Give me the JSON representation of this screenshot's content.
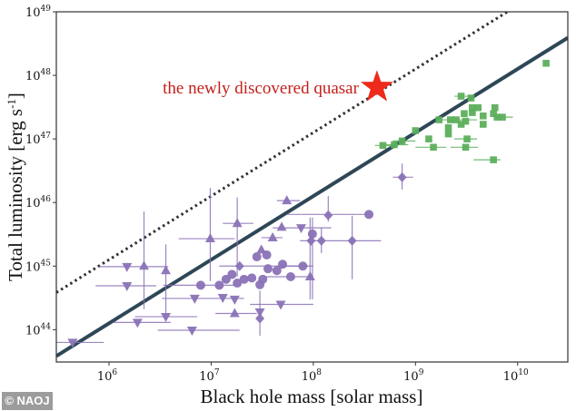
{
  "chart_data": {
    "type": "scatter",
    "title": "",
    "xlabel": "Black hole mass [solar mass]",
    "ylabel": "Total luminosity [erg s-1]",
    "ylabel_main": "Total luminosity [erg s",
    "ylabel_sup": "-1",
    "ylabel_end": "]",
    "x_scale": "log",
    "y_scale": "log",
    "xlim": [
      305000.0,
      31000000000.0
    ],
    "ylim": [
      3.1e+43,
      1e+49
    ],
    "grid": false,
    "x_ticks": [
      {
        "value": 1000000.0,
        "base": "10",
        "exp": "6"
      },
      {
        "value": 10000000.0,
        "base": "10",
        "exp": "7"
      },
      {
        "value": 100000000.0,
        "base": "10",
        "exp": "8"
      },
      {
        "value": 1000000000.0,
        "base": "10",
        "exp": "9"
      },
      {
        "value": 10000000000.0,
        "base": "10",
        "exp": "10"
      }
    ],
    "y_ticks": [
      {
        "value": 1e+44,
        "base": "10",
        "exp": "44"
      },
      {
        "value": 1e+45,
        "base": "10",
        "exp": "45"
      },
      {
        "value": 1e+46,
        "base": "10",
        "exp": "46"
      },
      {
        "value": 1e+47,
        "base": "10",
        "exp": "47"
      },
      {
        "value": 1e+48,
        "base": "10",
        "exp": "48"
      },
      {
        "value": 1e+49,
        "base": "10",
        "exp": "49"
      }
    ],
    "colors": {
      "purple": "#8a72b6",
      "green": "#5caf5c",
      "solid_line": "#2e4757",
      "dotted_line": "#333333",
      "star": "#ee2a1b",
      "annotation": "#c2201b"
    },
    "lines": [
      {
        "style": "solid",
        "relation": "L = 1.26e38 x M",
        "coefficient": 1.26e+38
      },
      {
        "style": "dotted",
        "relation": "L = 1.26e39 x M",
        "coefficient": 1.26e+39
      }
    ],
    "highlight": {
      "m": 420000000.0,
      "l": 6.5e+47,
      "marker": "star",
      "label": "the newly discovered quasar"
    },
    "series": [
      {
        "color": "purple",
        "points": [
          {
            "m": 440000.0,
            "l": 6.3e+43,
            "marker": "down",
            "xerr": [
              300000.0,
              890000.0
            ]
          },
          {
            "m": 1500000.0,
            "l": 9.8e+44,
            "marker": "down",
            "xerr": [
              810000.0,
              3800000.0
            ]
          },
          {
            "m": 1500000.0,
            "l": 4.9e+44,
            "marker": "down",
            "xerr": [
              740000.0,
              2900000.0
            ]
          },
          {
            "m": 2200000.0,
            "l": 1e+45,
            "marker": "up",
            "yerr": [
              2.1e+44,
              7.2e+45
            ]
          },
          {
            "m": 3600000.0,
            "l": 8.5e+44,
            "marker": "up",
            "yerr": [
              1.5e+44,
              2.2e+45
            ]
          },
          {
            "m": 3600000.0,
            "l": 1.6e+44,
            "marker": "down",
            "xerr": [
              1800000.0,
              7300000.0
            ]
          },
          {
            "m": 1900000.0,
            "l": 1.3e+44,
            "marker": "down",
            "xerr": [
              1100000.0,
              4000000.0
            ]
          },
          {
            "m": 6500000.0,
            "l": 9.8e+43,
            "marker": "down",
            "xerr": [
              3000000.0,
              19000000.0
            ]
          },
          {
            "m": 6900000.0,
            "l": 3.1e+44,
            "marker": "down",
            "xerr": [
              3300000.0,
              21000000.0
            ]
          },
          {
            "m": 9800000.0,
            "l": 2.7e+45,
            "marker": "up",
            "xerr": [
              4800000.0,
              17000000.0
            ],
            "yerr": [
              5.8e+44,
              1.7e+46
            ]
          },
          {
            "m": 7900000.0,
            "l": 5e+44,
            "marker": "circle",
            "xerr": [
              3400000.0,
              17000000.0
            ]
          },
          {
            "m": 18000000.0,
            "l": 4.7e+45,
            "marker": "up",
            "xerr": [
              13000000.0,
              26000000.0
            ],
            "yerr": [
              6.8e+44,
              1.2e+46
            ]
          },
          {
            "m": 55000000.0,
            "l": 1.07e+46,
            "marker": "up",
            "xerr": [
              44000000.0,
              74000000.0
            ]
          },
          {
            "m": 140000000.0,
            "l": 6.3e+45,
            "marker": "diamond",
            "yerr": [
              5e+45,
              1.26e+46
            ]
          },
          {
            "m": 350000000.0,
            "l": 6.5e+45,
            "marker": "circle",
            "xerr": [
              55000000.0,
              350000000.0
            ]
          },
          {
            "m": 76000000.0,
            "l": 4e+45,
            "marker": "down",
            "xerr": [
              40000000.0,
              150000000.0
            ]
          },
          {
            "m": 49000000.0,
            "l": 4.1e+45,
            "marker": "up"
          },
          {
            "m": 40000000.0,
            "l": 2.8e+45,
            "marker": "up",
            "xerr": [
              31000000.0,
              50000000.0
            ]
          },
          {
            "m": 98000000.0,
            "l": 3.2e+45,
            "marker": "circle",
            "yerr": [
              3e+44,
              5.8e+45
            ]
          },
          {
            "m": 95000000.0,
            "l": 2.5e+45,
            "marker": "diamond"
          },
          {
            "m": 240000000.0,
            "l": 2.5e+45,
            "marker": "diamond",
            "xerr": [
              74000000.0,
              460000000.0
            ],
            "yerr": [
              6.2e+44,
              6.2e+45
            ]
          },
          {
            "m": 120000000.0,
            "l": 2.5e+45,
            "marker": "diamond",
            "yerr": [
              1.6e+45,
              4e+45
            ]
          },
          {
            "m": 31000000.0,
            "l": 1.8e+45,
            "marker": "up"
          },
          {
            "m": 28000000.0,
            "l": 1.4e+45,
            "marker": "circle"
          },
          {
            "m": 35000000.0,
            "l": 1.5e+45,
            "marker": "circle"
          },
          {
            "m": 19000000.0,
            "l": 1e+45,
            "marker": "diamond",
            "xerr": [
              12000000.0,
              89000000.0
            ]
          },
          {
            "m": 50000000.0,
            "l": 1.07e+45,
            "marker": "circle"
          },
          {
            "m": 79000000.0,
            "l": 1e+45,
            "marker": "circle",
            "xerr": [
              44000000.0,
              100000000.0
            ]
          },
          {
            "m": 36000000.0,
            "l": 9.1e+44,
            "marker": "circle"
          },
          {
            "m": 44000000.0,
            "l": 8.5e+44,
            "marker": "circle"
          },
          {
            "m": 16000000.0,
            "l": 7.4e+44,
            "marker": "circle"
          },
          {
            "m": 14000000.0,
            "l": 6.2e+44,
            "marker": "circle"
          },
          {
            "m": 12000000.0,
            "l": 5e+44,
            "marker": "circle"
          },
          {
            "m": 21000000.0,
            "l": 6.2e+44,
            "marker": "circle"
          },
          {
            "m": 18000000.0,
            "l": 5.4e+44,
            "marker": "circle"
          },
          {
            "m": 25000000.0,
            "l": 6.5e+44,
            "marker": "circle"
          },
          {
            "m": 32000000.0,
            "l": 6.2e+44,
            "marker": "circle"
          },
          {
            "m": 30000000.0,
            "l": 5.1e+44,
            "marker": "circle"
          },
          {
            "m": 60000000.0,
            "l": 6.8e+44,
            "marker": "circle",
            "xerr": [
              33000000.0,
              100000000.0
            ]
          },
          {
            "m": 93000000.0,
            "l": 6.8e+44,
            "marker": "up",
            "yerr": [
              3e+44,
              5.8e+45
            ]
          },
          {
            "m": 17000000.0,
            "l": 3e+44,
            "marker": "down"
          },
          {
            "m": 13000000.0,
            "l": 3.2e+44,
            "marker": "down"
          },
          {
            "m": 48000000.0,
            "l": 2.5e+44,
            "marker": "down",
            "xerr": [
              24000000.0,
              100000000.0
            ]
          },
          {
            "m": 30000000.0,
            "l": 1.9e+44,
            "marker": "down"
          },
          {
            "m": 17000000.0,
            "l": 1.8e+44,
            "marker": "up",
            "xerr": [
              11000000.0,
              28000000.0
            ]
          },
          {
            "m": 30000000.0,
            "l": 1.5e+44,
            "marker": "diamond",
            "yerr": [
              8e+43,
              4.1e+44
            ]
          },
          {
            "m": 740000000.0,
            "l": 2.5e+46,
            "marker": "diamond",
            "xerr": [
              600000000.0,
              950000000.0
            ],
            "yerr": [
              1.6e+46,
              4.1e+46
            ]
          }
        ]
      },
      {
        "color": "green",
        "points": [
          {
            "m": 19000000000.0,
            "l": 1.55e+48,
            "marker": "square"
          },
          {
            "m": 2800000000.0,
            "l": 4.7e+47,
            "marker": "square",
            "xerr": [
              2400000000.0,
              3600000000.0
            ]
          },
          {
            "m": 3500000000.0,
            "l": 4.4e+47,
            "marker": "square"
          },
          {
            "m": 3600000000.0,
            "l": 3.1e+47,
            "marker": "square"
          },
          {
            "m": 4100000000.0,
            "l": 3.1e+47,
            "marker": "square"
          },
          {
            "m": 6000000000.0,
            "l": 3.1e+47,
            "marker": "square"
          },
          {
            "m": 3000000000.0,
            "l": 2.5e+47,
            "marker": "square"
          },
          {
            "m": 3600000000.0,
            "l": 2.6e+47,
            "marker": "square"
          },
          {
            "m": 4600000000.0,
            "l": 2.3e+47,
            "marker": "square"
          },
          {
            "m": 5800000000.0,
            "l": 2.5e+47,
            "marker": "square"
          },
          {
            "m": 6300000000.0,
            "l": 2.2e+47,
            "marker": "square"
          },
          {
            "m": 7100000000.0,
            "l": 2.2e+47,
            "marker": "square",
            "xerr": [
              6000000000.0,
              9000000000.0
            ]
          },
          {
            "m": 1700000000.0,
            "l": 2e+47,
            "marker": "square"
          },
          {
            "m": 2200000000.0,
            "l": 2e+47,
            "marker": "square"
          },
          {
            "m": 2500000000.0,
            "l": 2e+47,
            "marker": "square",
            "xerr": [
              1800000000.0,
              4000000000.0
            ]
          },
          {
            "m": 3100000000.0,
            "l": 1.9e+47,
            "marker": "square"
          },
          {
            "m": 2800000000.0,
            "l": 1.7e+47,
            "marker": "square"
          },
          {
            "m": 4600000000.0,
            "l": 1.7e+47,
            "marker": "square"
          },
          {
            "m": 2100000000.0,
            "l": 1.5e+47,
            "marker": "square"
          },
          {
            "m": 2100000000.0,
            "l": 1.2e+47,
            "marker": "square"
          },
          {
            "m": 1000000000.0,
            "l": 1.35e+47,
            "marker": "square"
          },
          {
            "m": 1350000000.0,
            "l": 1e+47,
            "marker": "square"
          },
          {
            "m": 3200000000.0,
            "l": 1e+47,
            "marker": "square",
            "xerr": [
              2400000000.0,
              4000000000.0
            ]
          },
          {
            "m": 1500000000.0,
            "l": 7.4e+46,
            "marker": "square",
            "xerr": [
              1000000000.0,
              2000000000.0
            ]
          },
          {
            "m": 3100000000.0,
            "l": 7.4e+46,
            "marker": "square",
            "xerr": [
              2200000000.0,
              4100000000.0
            ]
          },
          {
            "m": 5800000000.0,
            "l": 4.7e+46,
            "marker": "square",
            "xerr": [
              3700000000.0,
              6800000000.0
            ]
          },
          {
            "m": 480000000.0,
            "l": 7.9e+46,
            "marker": "square",
            "xerr": [
              400000000.0,
              590000000.0
            ]
          },
          {
            "m": 620000000.0,
            "l": 8.1e+46,
            "marker": "square",
            "xerr": [
              500000000.0,
              850000000.0
            ]
          },
          {
            "m": 740000000.0,
            "l": 9.3e+46,
            "marker": "square",
            "xerr": [
              600000000.0,
              1000000000.0
            ]
          }
        ]
      }
    ]
  },
  "watermark": "© NAOJ"
}
